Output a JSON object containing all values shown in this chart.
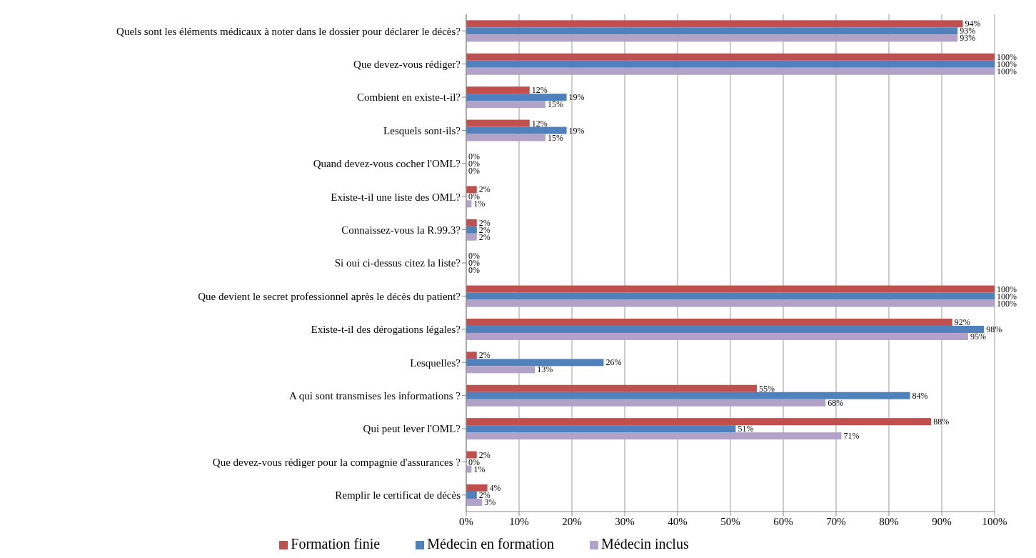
{
  "chart_data": {
    "type": "bar",
    "orientation": "horizontal",
    "categories": [
      "Quels sont les éléments médicaux à noter dans le dossier pour déclarer le décès?",
      "Que devez-vous rédiger?",
      "Combient en existe-t-il?",
      "Lesquels sont-ils?",
      "Quand devez-vous cocher l'OML?",
      "Existe-t-il une liste des OML?",
      "Connaissez-vous la R.99.3?",
      "Si oui ci-dessus citez la liste?",
      "Que devient le secret professionnel après le décès du patient?",
      "Existe-t-il des dérogations légales?",
      "Lesquelles?",
      "A qui sont transmises les informations ?",
      "Qui peut lever l'OML?",
      "Que devez-vous rédiger pour la compagnie d'assurances ?",
      "Remplir le certificat de décès"
    ],
    "series": [
      {
        "name": "Formation finie",
        "color": "#c0504d",
        "values": [
          94,
          100,
          12,
          12,
          0,
          2,
          2,
          0,
          100,
          92,
          2,
          55,
          88,
          2,
          4
        ],
        "value_labels": [
          "94%",
          "100%",
          "12%",
          "12%",
          "0%",
          "2%",
          "2%",
          "0%",
          "100%",
          "92%",
          "2%",
          "55%",
          "88%",
          "2%",
          "4%"
        ]
      },
      {
        "name": "Médecin en formation",
        "color": "#4f81bd",
        "values": [
          93,
          100,
          19,
          19,
          0,
          0,
          2,
          0,
          100,
          98,
          26,
          84,
          51,
          0,
          2
        ],
        "value_labels": [
          "93%",
          "100%",
          "19%",
          "19%",
          "0%",
          "0%",
          "2%",
          "0%",
          "100%",
          "98%",
          "26%",
          "84%",
          "51%",
          "0%",
          "2%"
        ]
      },
      {
        "name": "Médecin inclus",
        "color": "#b3a2c7",
        "values": [
          93,
          100,
          15,
          15,
          0,
          1,
          2,
          0,
          100,
          95,
          13,
          68,
          71,
          1,
          3
        ],
        "value_labels": [
          "93%",
          "100%",
          "15%",
          "15%",
          "0%",
          "1%",
          "2%",
          "0%",
          "100%",
          "95%",
          "13%",
          "68%",
          "71%",
          "1%",
          "3%"
        ]
      }
    ],
    "xlim": [
      0,
      100
    ],
    "xticks": [
      {
        "value": 0,
        "label": "0%"
      },
      {
        "value": 10,
        "label": "10%"
      },
      {
        "value": 20,
        "label": "20%"
      },
      {
        "value": 30,
        "label": "30%"
      },
      {
        "value": 40,
        "label": "40%"
      },
      {
        "value": 50,
        "label": "50%"
      },
      {
        "value": 60,
        "label": "60%"
      },
      {
        "value": 70,
        "label": "70%"
      },
      {
        "value": 80,
        "label": "80%"
      },
      {
        "value": 90,
        "label": "90%"
      },
      {
        "value": 100,
        "label": "100%"
      }
    ],
    "grid": "x",
    "legend": "bottom"
  }
}
